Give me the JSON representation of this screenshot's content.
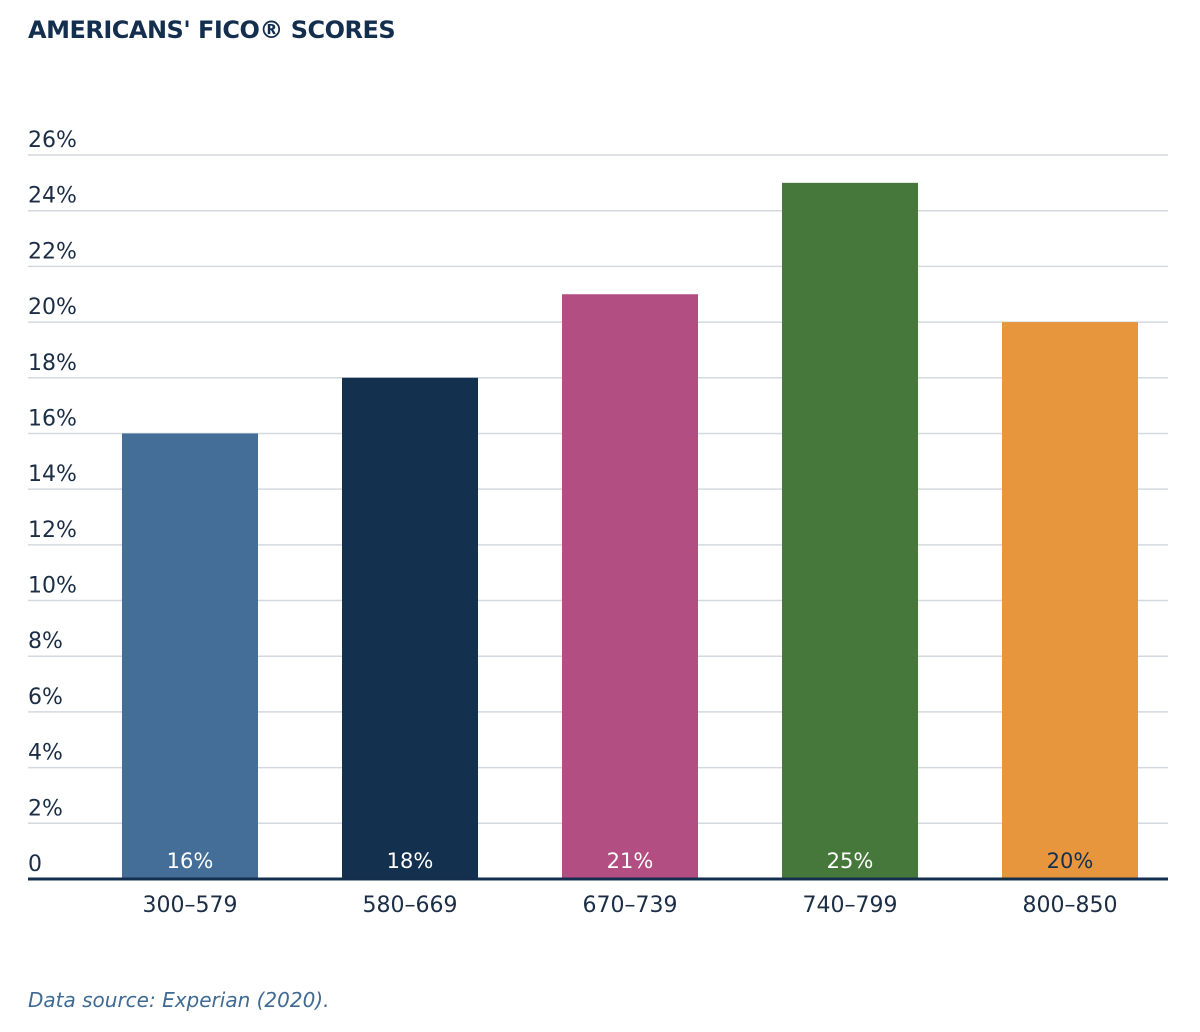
{
  "title": "AMERICANS' FICO® SCORES",
  "source": "Data source: Experian (2020).",
  "chart_data": {
    "type": "bar",
    "title": "AMERICANS' FICO® SCORES",
    "xlabel": "",
    "ylabel": "",
    "categories": [
      "300–579",
      "580–669",
      "670–739",
      "740–799",
      "800–850"
    ],
    "values": [
      16,
      18,
      21,
      25,
      20
    ],
    "data_labels": [
      "16%",
      "18%",
      "21%",
      "25%",
      "20%"
    ],
    "colors": [
      "#446e97",
      "#14304f",
      "#b24e81",
      "#47783b",
      "#e8963e"
    ],
    "ylim": [
      0,
      26
    ],
    "yticks": [
      0,
      2,
      4,
      6,
      8,
      10,
      12,
      14,
      16,
      18,
      20,
      22,
      24,
      26
    ],
    "ytick_labels": [
      "0",
      "2%",
      "4%",
      "6%",
      "8%",
      "10%",
      "12%",
      "14%",
      "16%",
      "18%",
      "20%",
      "22%",
      "24%",
      "26%"
    ],
    "grid": true,
    "legend": "none"
  }
}
